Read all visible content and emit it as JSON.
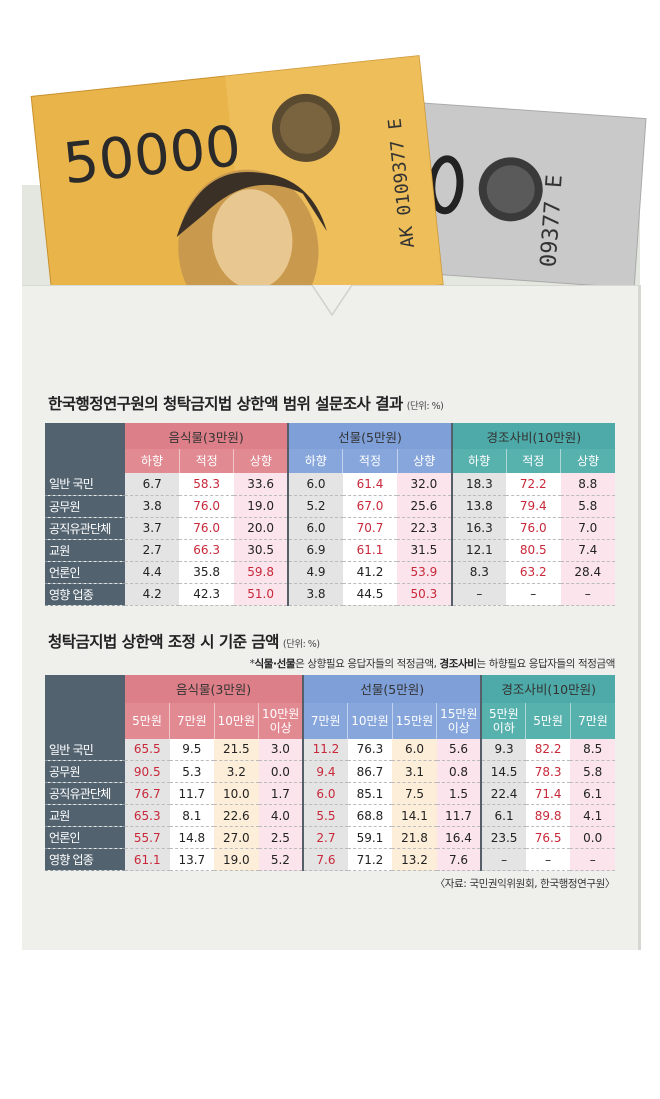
{
  "banknotes": {
    "denomination": "50000",
    "serial": "AK 0109377 E",
    "serial_back": "09377 E"
  },
  "table1": {
    "title": "한국행정연구원의 청탁금지법 상한액 범위 설문조사 결과",
    "unit": "(단위: %)",
    "groups": [
      {
        "label": "음식물(3만원)",
        "subs": [
          "하향",
          "적정",
          "상향"
        ]
      },
      {
        "label": "선물(5만원)",
        "subs": [
          "하향",
          "적정",
          "상향"
        ]
      },
      {
        "label": "경조사비(10만원)",
        "subs": [
          "하향",
          "적정",
          "상향"
        ]
      }
    ],
    "rows": [
      {
        "label": "일반 국민",
        "values": [
          "6.7",
          "58.3",
          "33.6",
          "6.0",
          "61.4",
          "32.0",
          "18.3",
          "72.2",
          "8.8"
        ],
        "highlight": [
          1,
          4,
          7
        ]
      },
      {
        "label": "공무원",
        "values": [
          "3.8",
          "76.0",
          "19.0",
          "5.2",
          "67.0",
          "25.6",
          "13.8",
          "79.4",
          "5.8"
        ],
        "highlight": [
          1,
          4,
          7
        ]
      },
      {
        "label": "공직유관단체",
        "values": [
          "3.7",
          "76.0",
          "20.0",
          "6.0",
          "70.7",
          "22.3",
          "16.3",
          "76.0",
          "7.0"
        ],
        "highlight": [
          1,
          4,
          7
        ]
      },
      {
        "label": "교원",
        "values": [
          "2.7",
          "66.3",
          "30.5",
          "6.9",
          "61.1",
          "31.5",
          "12.1",
          "80.5",
          "7.4"
        ],
        "highlight": [
          1,
          4,
          7
        ]
      },
      {
        "label": "언론인",
        "values": [
          "4.4",
          "35.8",
          "59.8",
          "4.9",
          "41.2",
          "53.9",
          "8.3",
          "63.2",
          "28.4"
        ],
        "highlight": [
          2,
          5,
          7
        ]
      },
      {
        "label": "영향 업종",
        "values": [
          "4.2",
          "42.3",
          "51.0",
          "3.8",
          "44.5",
          "50.3",
          "–",
          "–",
          "–"
        ],
        "highlight": [
          2,
          5
        ]
      }
    ]
  },
  "table2": {
    "title": "청탁금지법 상한액 조정 시 기준 금액",
    "unit": "(단위: %)",
    "note_prefix": "*",
    "note_bold1": "식물·선물",
    "note_mid": "은 상향필요 응답자들의 적정금액, ",
    "note_bold2": "경조사비",
    "note_end": "는 하향필요 응답자들의 적정금액",
    "groups": [
      {
        "label": "음식물(3만원)",
        "subs": [
          "5만원",
          "7만원",
          "10만원",
          "10만원\n이상"
        ]
      },
      {
        "label": "선물(5만원)",
        "subs": [
          "7만원",
          "10만원",
          "15만원",
          "15만원\n이상"
        ]
      },
      {
        "label": "경조사비(10만원)",
        "subs": [
          "5만원\n이하",
          "5만원",
          "7만원"
        ]
      }
    ],
    "rows": [
      {
        "label": "일반 국민",
        "values": [
          "65.5",
          "9.5",
          "21.5",
          "3.0",
          "11.2",
          "76.3",
          "6.0",
          "5.6",
          "9.3",
          "82.2",
          "8.5"
        ],
        "highlight": [
          0,
          4,
          9
        ]
      },
      {
        "label": "공무원",
        "values": [
          "90.5",
          "5.3",
          "3.2",
          "0.0",
          "9.4",
          "86.7",
          "3.1",
          "0.8",
          "14.5",
          "78.3",
          "5.8"
        ],
        "highlight": [
          0,
          4,
          9
        ]
      },
      {
        "label": "공직유관단체",
        "values": [
          "76.7",
          "11.7",
          "10.0",
          "1.7",
          "6.0",
          "85.1",
          "7.5",
          "1.5",
          "22.4",
          "71.4",
          "6.1"
        ],
        "highlight": [
          0,
          4,
          9
        ]
      },
      {
        "label": "교원",
        "values": [
          "65.3",
          "8.1",
          "22.6",
          "4.0",
          "5.5",
          "68.8",
          "14.1",
          "11.7",
          "6.1",
          "89.8",
          "4.1"
        ],
        "highlight": [
          0,
          4,
          9
        ]
      },
      {
        "label": "언론인",
        "values": [
          "55.7",
          "14.8",
          "27.0",
          "2.5",
          "2.7",
          "59.1",
          "21.8",
          "16.4",
          "23.5",
          "76.5",
          "0.0"
        ],
        "highlight": [
          0,
          4,
          9
        ]
      },
      {
        "label": "영향 업종",
        "values": [
          "61.1",
          "13.7",
          "19.0",
          "5.2",
          "7.6",
          "71.2",
          "13.2",
          "7.6",
          "–",
          "–",
          "–"
        ],
        "highlight": [
          0,
          4
        ]
      }
    ]
  },
  "source": "〈자료: 국민권익위원회, 한국행정연구원〉",
  "colors": {
    "row_header": "#52626f",
    "food": "#dd7f88",
    "gift": "#7e9fd8",
    "condolence": "#4daaa8",
    "highlight_text": "#c8283a"
  }
}
